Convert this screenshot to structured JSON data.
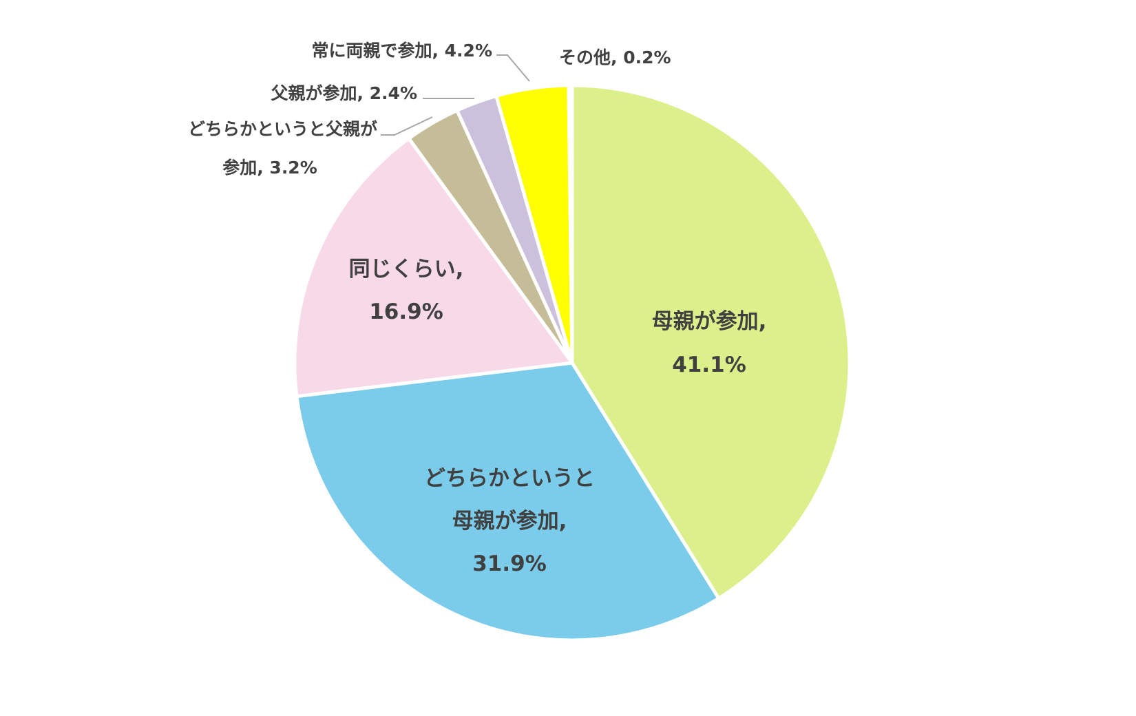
{
  "chart_data": {
    "type": "pie",
    "title": "",
    "slices": [
      {
        "label": "母親が参加",
        "value": 41.1,
        "value_label": "41.1%",
        "color": "#dbef8a"
      },
      {
        "label": "どちらかというと母親が参加",
        "value": 31.9,
        "value_label": "31.9%",
        "color": "#7bcbea"
      },
      {
        "label": "同じくらい",
        "value": 16.9,
        "value_label": "16.9%",
        "color": "#f8d9e8"
      },
      {
        "label": "どちらかというと父親が参加",
        "value": 3.2,
        "value_label": "3.2%",
        "color": "#c4bd98"
      },
      {
        "label": "父親が参加",
        "value": 2.4,
        "value_label": "2.4%",
        "color": "#cbc1dd"
      },
      {
        "label": "常に両親で参加",
        "value": 4.2,
        "value_label": "4.2%",
        "color": "#ffff00"
      },
      {
        "label": "その他",
        "value": 0.2,
        "value_label": "0.2%",
        "color": "#d9d9d9"
      }
    ],
    "labels": {
      "mother_l1": "母親が参加,",
      "mother_l2": "41.1%",
      "rather_mother_l1": "どちらかというと",
      "rather_mother_l2": "母親が参加,",
      "rather_mother_l3": "31.9%",
      "same_l1": "同じくらい,",
      "same_l2": "16.9%",
      "rather_father_l1": "どちらかというと父親が",
      "rather_father_l2": "参加, 3.2%",
      "father": "父親が参加, 2.4%",
      "both": "常に両親で参加, 4.2%",
      "other": "その他, 0.2%"
    }
  }
}
